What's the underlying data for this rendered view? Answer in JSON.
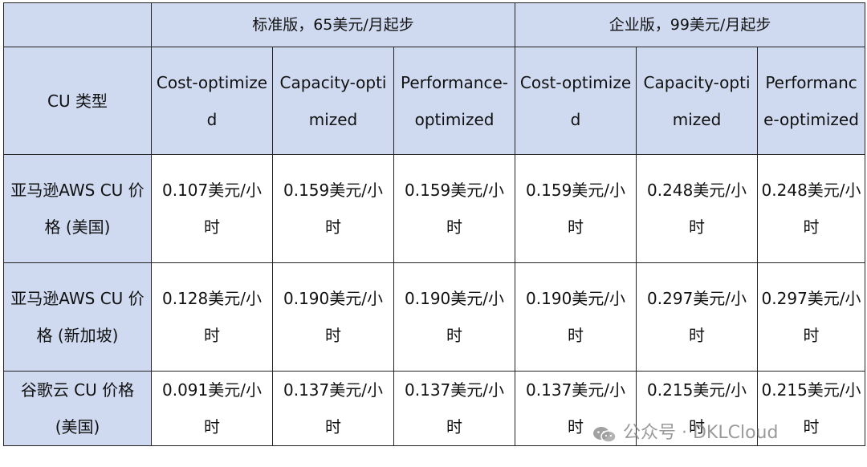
{
  "header": {
    "corner": "",
    "standard": "标准版，65美元/月起步",
    "enterprise": "企业版，99美元/月起步"
  },
  "subheader": {
    "label": "CU 类型",
    "columns": [
      "Cost-optimized",
      "Capacity-optimized",
      "Performance-optimized",
      "Cost-optimized",
      "Capacity-optimized",
      "Performance-optimized"
    ]
  },
  "rows": [
    {
      "label": "亚马逊AWS CU 价格 (美国)",
      "cells": [
        "0.107美元/小时",
        "0.159美元/小时",
        "0.159美元/小时",
        "0.159美元/小时",
        "0.248美元/小时",
        "0.248美元/小时"
      ]
    },
    {
      "label": "亚马逊AWS CU 价格 (新加坡)",
      "cells": [
        "0.128美元/小时",
        "0.190美元/小时",
        "0.190美元/小时",
        "0.190美元/小时",
        "0.297美元/小时",
        "0.297美元/小时"
      ]
    },
    {
      "label": "谷歌云 CU 价格 (美国)",
      "cells": [
        "0.091美元/小时",
        "0.137美元/小时",
        "0.137美元/小时",
        "0.137美元/小时",
        "0.215美元/小时",
        "0.215美元/小时"
      ]
    }
  ],
  "watermark": {
    "text": "公众号 · DKLCloud",
    "icon": "wechat-icon"
  }
}
